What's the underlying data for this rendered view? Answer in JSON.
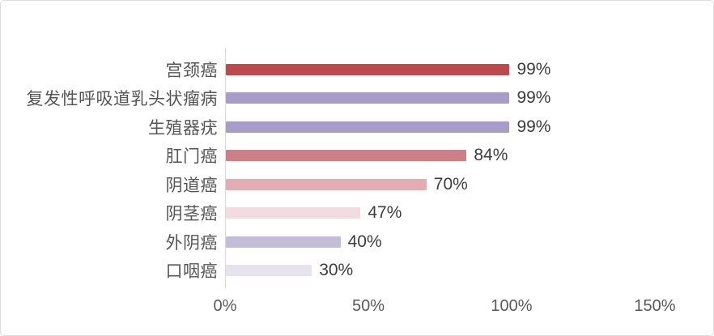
{
  "chart_data": {
    "type": "bar",
    "orientation": "horizontal",
    "title": "",
    "xlabel": "",
    "ylabel": "",
    "categories": [
      "宫颈癌",
      "复发性呼吸道乳头状瘤病",
      "生殖器疣",
      "肛门癌",
      "阴道癌",
      "阴茎癌",
      "外阴癌",
      "口咽癌"
    ],
    "values": [
      99,
      99,
      99,
      84,
      70,
      47,
      40,
      30
    ],
    "value_labels": [
      "99%",
      "99%",
      "99%",
      "84%",
      "70%",
      "47%",
      "40%",
      "30%"
    ],
    "bar_colors": [
      "#bc4a4d",
      "#a89cc8",
      "#a89cc8",
      "#ce7f86",
      "#e2aeb4",
      "#f2dce0",
      "#c4bdd7",
      "#e7e3ee"
    ],
    "x_ticks": {
      "labels": [
        "0%",
        "50%",
        "100%",
        "150%"
      ],
      "values": [
        0,
        50,
        100,
        150
      ]
    },
    "xlim": [
      0,
      150
    ],
    "grid": "off",
    "legend": "none",
    "colors": {
      "axis_line": "#d9d9d9",
      "category_label": "#555555",
      "value_label": "#3d3d3d",
      "tick_label": "#595959",
      "background": "#ffffff",
      "frame_border": "#dcdcdc"
    }
  }
}
